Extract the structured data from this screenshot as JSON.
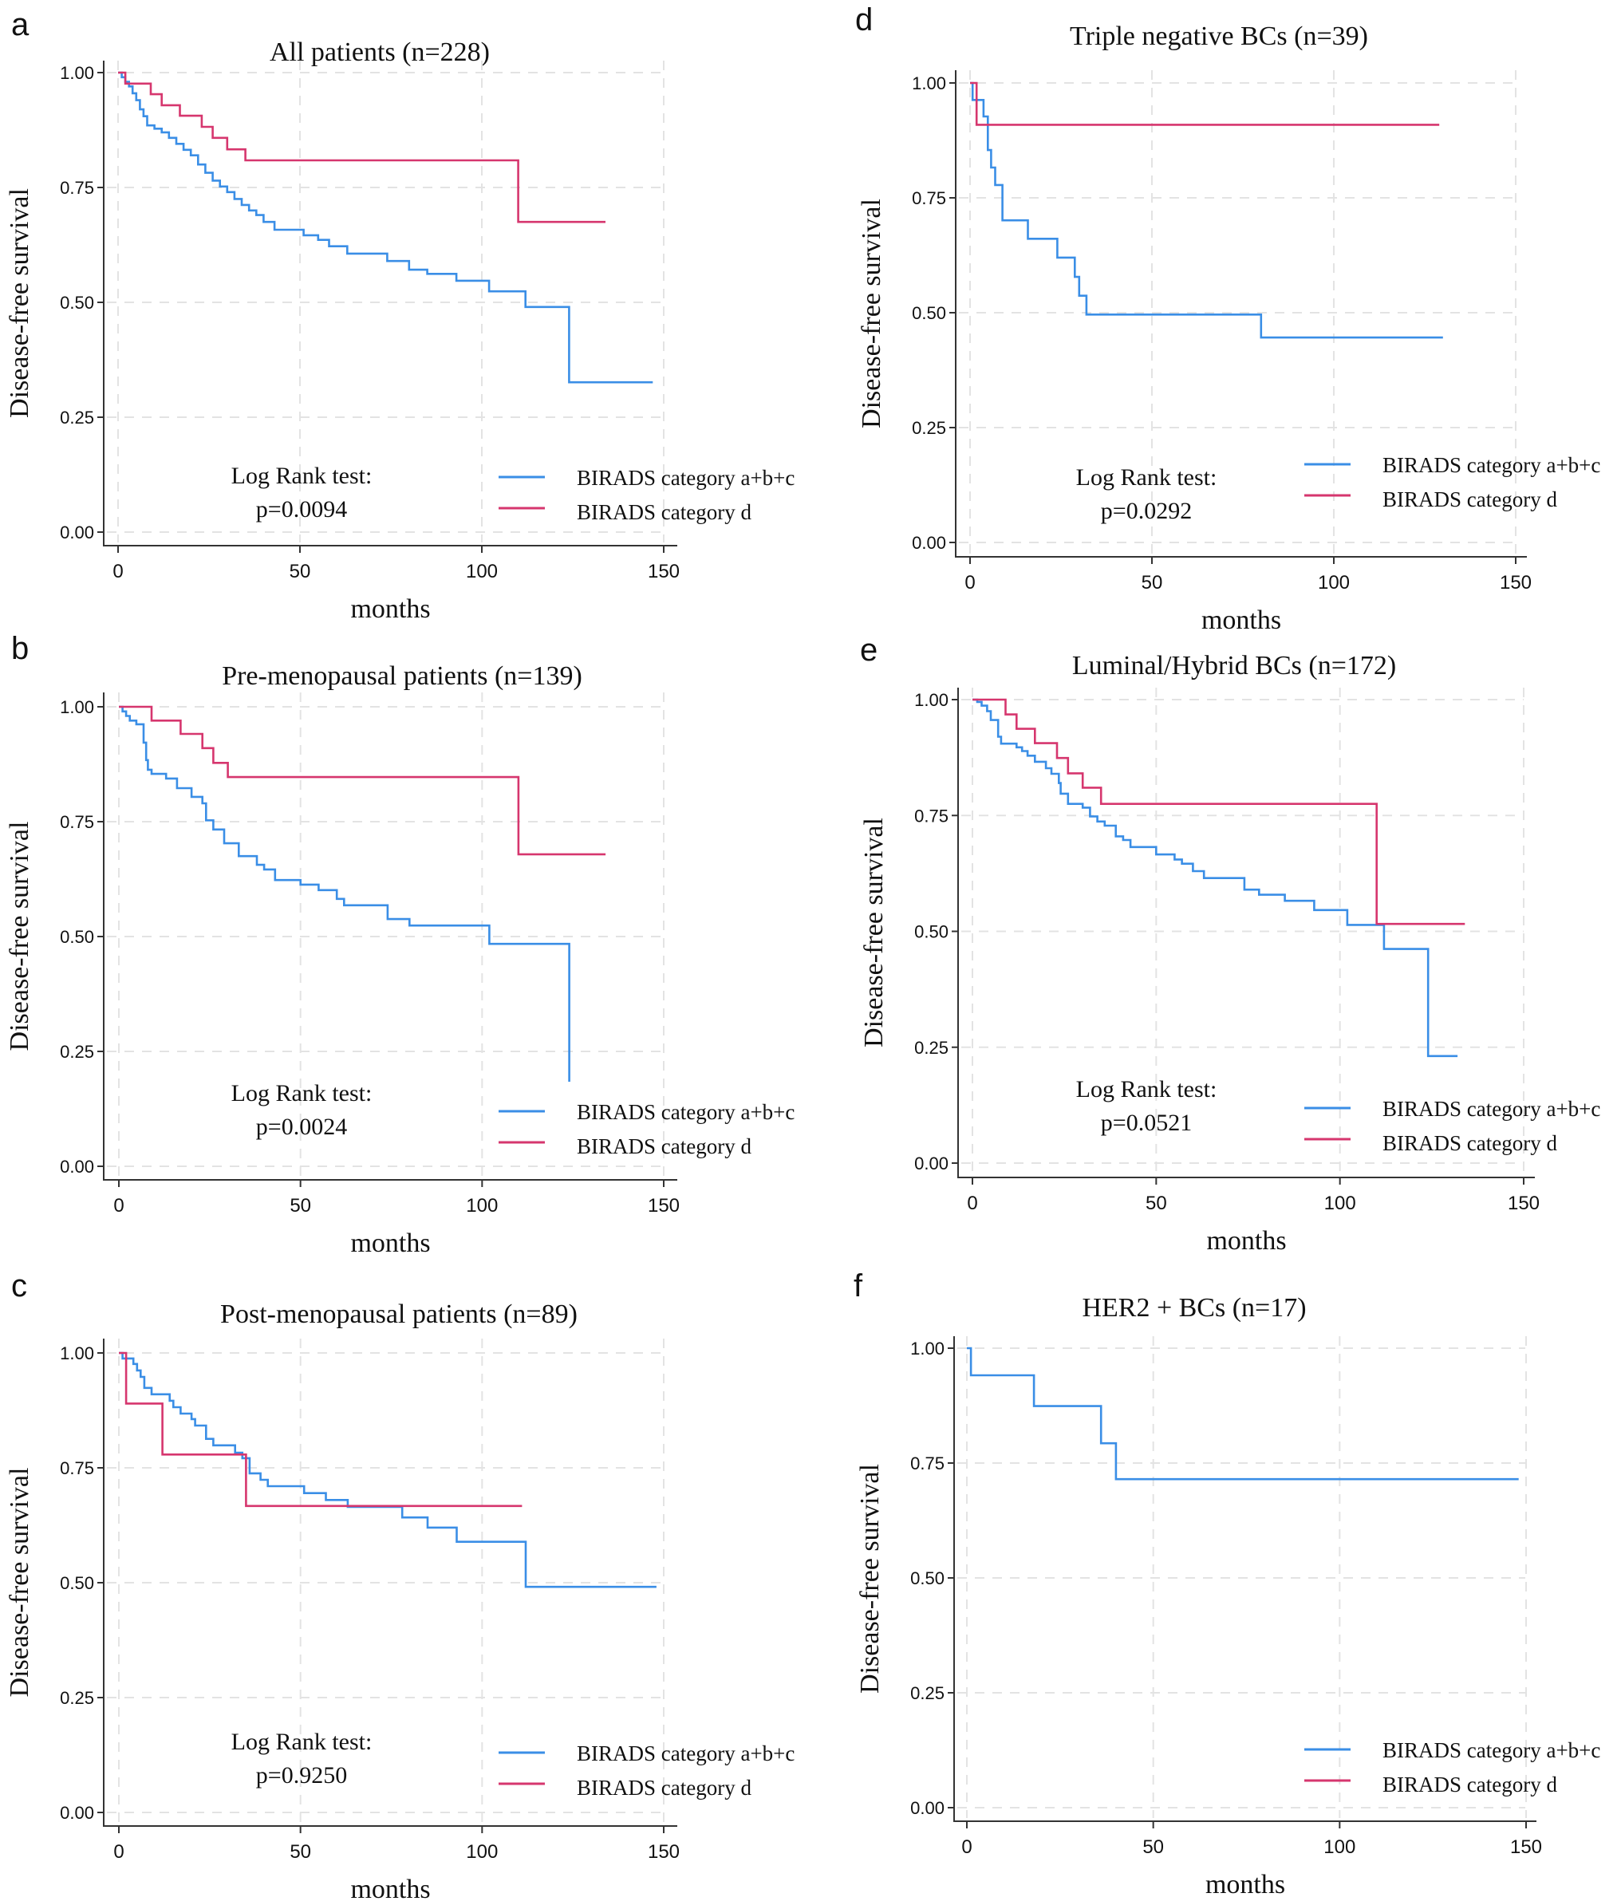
{
  "figure": {
    "colors": {
      "series_abc": "#3a8ee6",
      "series_d": "#d6366e",
      "axis": "#333333",
      "grid": "#e3e3e3",
      "text": "#111111"
    }
  },
  "chart_data": [
    {
      "panel_label": "a",
      "type": "line",
      "step": true,
      "title": "All patients (n=228)",
      "xlabel": "months",
      "ylabel": "Disease-free survival",
      "xlim": [
        0,
        150
      ],
      "ylim": [
        0,
        1
      ],
      "xticks": [
        "0",
        "50",
        "100",
        "150"
      ],
      "yticks": [
        "0.00",
        "0.25",
        "0.50",
        "0.75",
        "1.00"
      ],
      "grid": true,
      "annotation": [
        "Log Rank test:",
        "p=0.0094"
      ],
      "legend": [
        "BIRADS category  a+b+c",
        "BIRADS category  d"
      ],
      "legend_position": "bottom-right",
      "series": [
        {
          "name": "BIRADS category a+b+c",
          "x": [
            0,
            1,
            2,
            3,
            4,
            5,
            6,
            7,
            8,
            10,
            12,
            14,
            16,
            18,
            20,
            22,
            24,
            26,
            28,
            30,
            32,
            34,
            36,
            38,
            40,
            43,
            51,
            55,
            58,
            63,
            74,
            80,
            85,
            93,
            102,
            112,
            124,
            147
          ],
          "y": [
            1.0,
            0.99,
            0.98,
            0.97,
            0.955,
            0.94,
            0.92,
            0.905,
            0.885,
            0.878,
            0.87,
            0.858,
            0.845,
            0.832,
            0.82,
            0.8,
            0.782,
            0.765,
            0.752,
            0.74,
            0.725,
            0.712,
            0.7,
            0.69,
            0.675,
            0.658,
            0.646,
            0.636,
            0.622,
            0.606,
            0.59,
            0.571,
            0.562,
            0.547,
            0.524,
            0.49,
            0.326,
            0.326
          ]
        },
        {
          "name": "BIRADS category d",
          "x": [
            0,
            2,
            9,
            12,
            17,
            23,
            26,
            30,
            35,
            110,
            134
          ],
          "y": [
            1.0,
            0.976,
            0.953,
            0.929,
            0.906,
            0.882,
            0.858,
            0.833,
            0.809,
            0.675,
            0.675
          ]
        }
      ]
    },
    {
      "panel_label": "b",
      "type": "line",
      "step": true,
      "title": "Pre-menopausal patients (n=139)",
      "xlabel": "months",
      "ylabel": "Disease-free survival",
      "xlim": [
        0,
        150
      ],
      "ylim": [
        0,
        1
      ],
      "xticks": [
        "0",
        "50",
        "100",
        "150"
      ],
      "yticks": [
        "0.00",
        "0.25",
        "0.50",
        "0.75",
        "1.00"
      ],
      "grid": true,
      "annotation": [
        "Log Rank test:",
        "p=0.0024"
      ],
      "legend": [
        "BIRADS category  a+b+c",
        "BIRADS category  d"
      ],
      "legend_position": "bottom-right",
      "series": [
        {
          "name": "BIRADS category a+b+c",
          "x": [
            0,
            1,
            2,
            3,
            4.8,
            6.8,
            7.5,
            8,
            9,
            13,
            16,
            20,
            23,
            24,
            26,
            29,
            33,
            38,
            40,
            43,
            50,
            55,
            60,
            62,
            74,
            80,
            102,
            124
          ],
          "y": [
            1.0,
            0.99,
            0.98,
            0.97,
            0.962,
            0.922,
            0.884,
            0.863,
            0.854,
            0.844,
            0.823,
            0.804,
            0.79,
            0.753,
            0.733,
            0.703,
            0.675,
            0.656,
            0.646,
            0.623,
            0.613,
            0.601,
            0.582,
            0.568,
            0.538,
            0.524,
            0.484,
            0.184
          ]
        },
        {
          "name": "BIRADS category d",
          "x": [
            0,
            9,
            17,
            23,
            26,
            30,
            110,
            134
          ],
          "y": [
            1.0,
            0.97,
            0.941,
            0.91,
            0.878,
            0.847,
            0.679,
            0.679
          ]
        }
      ]
    },
    {
      "panel_label": "c",
      "type": "line",
      "step": true,
      "title": "Post-menopausal patients (n=89)",
      "xlabel": "months",
      "ylabel": "Disease-free survival",
      "xlim": [
        0,
        150
      ],
      "ylim": [
        0,
        1
      ],
      "xticks": [
        "0",
        "50",
        "100",
        "150"
      ],
      "yticks": [
        "0.00",
        "0.25",
        "0.50",
        "0.75",
        "1.00"
      ],
      "grid": true,
      "annotation": [
        "Log Rank test:",
        "p=0.9250"
      ],
      "legend": [
        "BIRADS category  a+b+c",
        "BIRADS category  d"
      ],
      "legend_position": "bottom-right",
      "series": [
        {
          "name": "BIRADS category a+b+c",
          "x": [
            0,
            1,
            4,
            5,
            6,
            7,
            9,
            14,
            15,
            17,
            20,
            21,
            24,
            26,
            32,
            34,
            36,
            39,
            41,
            51,
            57,
            63,
            78,
            85,
            93,
            112,
            148
          ],
          "y": [
            1.0,
            0.988,
            0.976,
            0.962,
            0.948,
            0.924,
            0.91,
            0.896,
            0.882,
            0.868,
            0.856,
            0.842,
            0.813,
            0.799,
            0.783,
            0.771,
            0.738,
            0.724,
            0.71,
            0.695,
            0.68,
            0.665,
            0.642,
            0.62,
            0.589,
            0.491,
            0.491
          ]
        },
        {
          "name": "BIRADS category d",
          "x": [
            0,
            2,
            12,
            35,
            111
          ],
          "y": [
            1.0,
            0.89,
            0.779,
            0.667,
            0.667
          ]
        }
      ]
    },
    {
      "panel_label": "d",
      "type": "line",
      "step": true,
      "title": "Triple negative BCs (n=39)",
      "xlabel": "months",
      "ylabel": "Disease-free survival",
      "xlim": [
        0,
        150
      ],
      "ylim": [
        0,
        1
      ],
      "xticks": [
        "0",
        "50",
        "100",
        "150"
      ],
      "yticks": [
        "0.00",
        "0.25",
        "0.50",
        "0.75",
        "1.00"
      ],
      "grid": true,
      "annotation": [
        "Log Rank test:",
        "p=0.0292"
      ],
      "legend": [
        "BIRADS category  a+b+c",
        "BIRADS category  d"
      ],
      "legend_position": "bottom-right",
      "series": [
        {
          "name": "BIRADS category a+b+c",
          "x": [
            0,
            0.7,
            3.7,
            4.9,
            5.8,
            6.9,
            8.9,
            15.9,
            24,
            28.8,
            30,
            32,
            80,
            130
          ],
          "y": [
            1.0,
            0.963,
            0.927,
            0.854,
            0.816,
            0.778,
            0.701,
            0.661,
            0.62,
            0.578,
            0.537,
            0.496,
            0.446,
            0.446
          ]
        },
        {
          "name": "BIRADS category d",
          "x": [
            0,
            1.8,
            129
          ],
          "y": [
            1.0,
            0.909,
            0.909
          ]
        }
      ]
    },
    {
      "panel_label": "e",
      "type": "line",
      "step": true,
      "title": "Luminal/Hybrid BCs (n=172)",
      "xlabel": "months",
      "ylabel": "Disease-free survival",
      "xlim": [
        0,
        150
      ],
      "ylim": [
        0,
        1
      ],
      "xticks": [
        "0",
        "50",
        "100",
        "150"
      ],
      "yticks": [
        "0.00",
        "0.25",
        "0.50",
        "0.75",
        "1.00"
      ],
      "grid": true,
      "annotation": [
        "Log Rank test:",
        "p=0.0521"
      ],
      "legend": [
        "BIRADS category  a+b+c",
        "BIRADS category  d"
      ],
      "legend_position": "bottom-right",
      "series": [
        {
          "name": "BIRADS category a+b+c",
          "x": [
            0,
            1.3,
            2.5,
            4,
            5,
            7,
            7.8,
            12,
            13.5,
            15,
            17,
            20,
            21.5,
            23.5,
            24,
            26,
            30,
            32,
            34,
            36,
            39,
            41,
            43,
            50,
            55,
            57,
            60,
            63,
            74,
            78,
            85,
            93,
            102,
            112,
            124,
            132
          ],
          "y": [
            1.0,
            0.995,
            0.987,
            0.975,
            0.956,
            0.92,
            0.905,
            0.897,
            0.889,
            0.879,
            0.866,
            0.852,
            0.84,
            0.82,
            0.797,
            0.775,
            0.767,
            0.748,
            0.737,
            0.728,
            0.705,
            0.697,
            0.682,
            0.666,
            0.655,
            0.646,
            0.63,
            0.615,
            0.59,
            0.579,
            0.566,
            0.546,
            0.514,
            0.462,
            0.231,
            0.231
          ]
        },
        {
          "name": "BIRADS category d",
          "x": [
            0,
            9,
            12,
            17,
            23,
            26,
            30,
            35,
            110,
            134
          ],
          "y": [
            1.0,
            0.968,
            0.937,
            0.906,
            0.874,
            0.841,
            0.81,
            0.775,
            0.516,
            0.516
          ]
        }
      ]
    },
    {
      "panel_label": "f",
      "type": "line",
      "step": true,
      "title": "HER2 + BCs (n=17)",
      "xlabel": "months",
      "ylabel": "Disease-free survival",
      "xlim": [
        0,
        150
      ],
      "ylim": [
        0,
        1
      ],
      "xticks": [
        "0",
        "50",
        "100",
        "150"
      ],
      "yticks": [
        "0.00",
        "0.25",
        "0.50",
        "0.75",
        "1.00"
      ],
      "grid": true,
      "annotation": [],
      "legend": [
        "BIRADS category  a+b+c",
        "BIRADS category  d"
      ],
      "legend_position": "bottom-right",
      "series": [
        {
          "name": "BIRADS category a+b+c",
          "x": [
            0,
            1.1,
            18,
            36,
            40,
            148
          ],
          "y": [
            1.0,
            0.941,
            0.874,
            0.793,
            0.715,
            0.715
          ]
        },
        {
          "name": "BIRADS category d",
          "x": [],
          "y": []
        }
      ]
    }
  ]
}
